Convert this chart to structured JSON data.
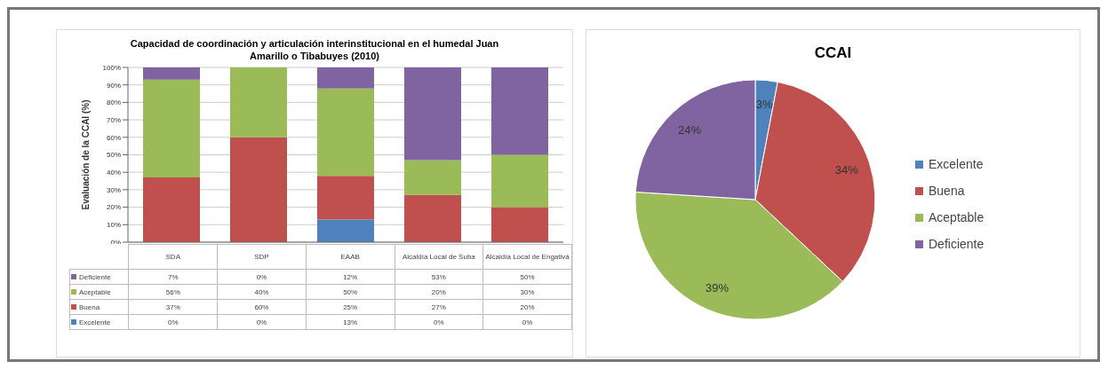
{
  "chart_data": [
    {
      "type": "bar",
      "stacked": true,
      "title": "Capacidad de coordinación y articulación interinstitucional en el humedal Juan Amarillo o Tibabuyes (2010)",
      "ylabel": "Evaluación de la CCAI (%)",
      "categories": [
        "SDA",
        "SDP",
        "EAAB",
        "Alcaldía Local de Suba",
        "Alcaldía Local de Engativá"
      ],
      "series": [
        {
          "name": "Excelente",
          "color": "#4f81bd",
          "values": [
            0,
            0,
            13,
            0,
            0
          ],
          "value_labels": [
            "0%",
            "0%",
            "13%",
            "0%",
            "0%"
          ]
        },
        {
          "name": "Buena",
          "color": "#c0504d",
          "values": [
            37,
            60,
            25,
            27,
            20
          ],
          "value_labels": [
            "37%",
            "60%",
            "25%",
            "27%",
            "20%"
          ]
        },
        {
          "name": "Aceptable",
          "color": "#9bbb59",
          "values": [
            56,
            40,
            50,
            20,
            30
          ],
          "value_labels": [
            "56%",
            "40%",
            "50%",
            "20%",
            "30%"
          ]
        },
        {
          "name": "Deficiente",
          "color": "#8064a2",
          "values": [
            7,
            0,
            12,
            53,
            50
          ],
          "value_labels": [
            "7%",
            "0%",
            "12%",
            "53%",
            "50%"
          ]
        }
      ],
      "ylim": [
        0,
        100
      ],
      "yticks": [
        {
          "value": 0,
          "label": "0%"
        },
        {
          "value": 10,
          "label": "10%"
        },
        {
          "value": 20,
          "label": "20%"
        },
        {
          "value": 30,
          "label": "30%"
        },
        {
          "value": 40,
          "label": "40%"
        },
        {
          "value": 50,
          "label": "50%"
        },
        {
          "value": 60,
          "label": "60%"
        },
        {
          "value": 70,
          "label": "70%"
        },
        {
          "value": 80,
          "label": "80%"
        },
        {
          "value": 90,
          "label": "90%"
        },
        {
          "value": 100,
          "label": "100%"
        }
      ],
      "grid": "y",
      "legend": "bottom"
    },
    {
      "type": "pie",
      "title": "CCAI",
      "categories": [
        "Excelente",
        "Buena",
        "Aceptable",
        "Deficiente"
      ],
      "values": [
        3,
        34,
        39,
        24
      ],
      "value_labels": [
        "3%",
        "34%",
        "39%",
        "24%"
      ],
      "colors": [
        "#4f81bd",
        "#c0504d",
        "#9bbb59",
        "#8064a2"
      ],
      "legend": "right"
    }
  ]
}
